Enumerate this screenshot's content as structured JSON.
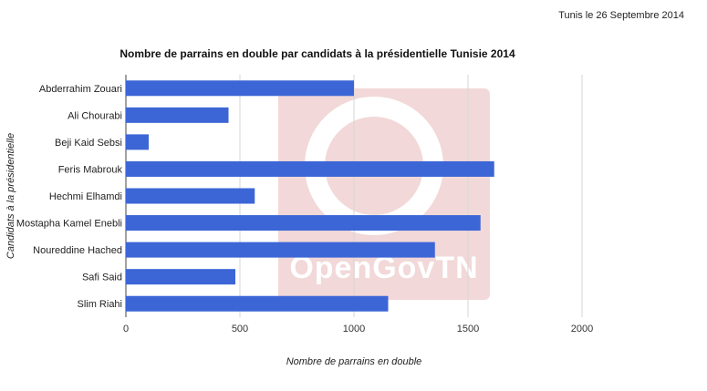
{
  "date_note": "Tunis le 26 Septembre 2014",
  "watermark": {
    "text": "OpenGovTN"
  },
  "colors": {
    "bar": "#3c66d6",
    "bar_dark": "#2f52be",
    "grid": "#d6d6d6",
    "watermark": "#e8b9b9",
    "text": "#222222"
  },
  "chart_data": {
    "type": "bar",
    "orientation": "horizontal",
    "title": "Nombre de parrains en double par candidats à la présidentielle Tunisie 2014",
    "xlabel": "Nombre de parrains en double",
    "ylabel": "Candidats à la présidentielle",
    "categories": [
      "Abderrahim Zouari",
      "Ali Chourabi",
      "Beji Kaid Sebsi",
      "Feris Mabrouk",
      "Hechmi Elhamdi",
      "Mostapha Kamel Enebli",
      "Noureddine Hached",
      "Safi Said",
      "Slim Riahi"
    ],
    "values": [
      1000,
      450,
      100,
      1615,
      565,
      1555,
      1355,
      480,
      1150
    ],
    "xlim": [
      0,
      2000
    ],
    "xticks": [
      0,
      500,
      1000,
      1500,
      2000
    ],
    "grid": true,
    "legend": "none"
  }
}
